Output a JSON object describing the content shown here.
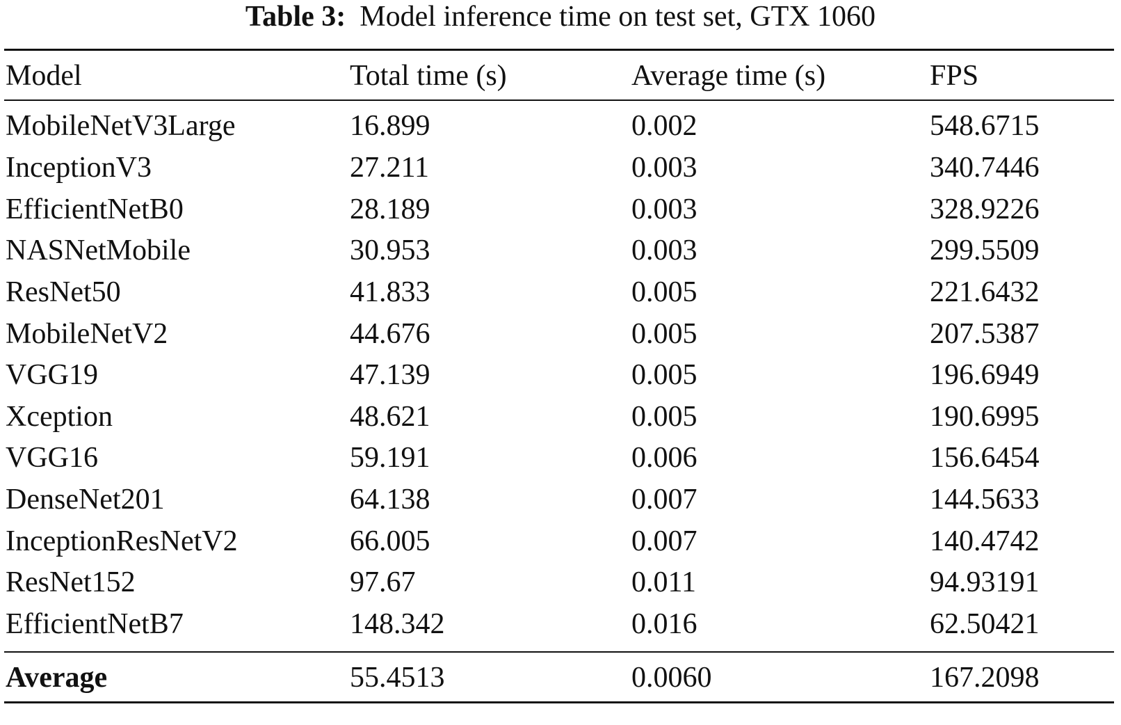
{
  "caption": {
    "label": "Table 3:",
    "text": "Model inference time on test set, GTX 1060"
  },
  "columns": [
    "Model",
    "Total time (s)",
    "Average time (s)",
    "FPS"
  ],
  "rows": [
    [
      "MobileNetV3Large",
      "16.899",
      "0.002",
      "548.6715"
    ],
    [
      "InceptionV3",
      "27.211",
      "0.003",
      "340.7446"
    ],
    [
      "EfficientNetB0",
      "28.189",
      "0.003",
      "328.9226"
    ],
    [
      "NASNetMobile",
      "30.953",
      "0.003",
      "299.5509"
    ],
    [
      "ResNet50",
      "41.833",
      "0.005",
      "221.6432"
    ],
    [
      "MobileNetV2",
      "44.676",
      "0.005",
      "207.5387"
    ],
    [
      "VGG19",
      "47.139",
      "0.005",
      "196.6949"
    ],
    [
      "Xception",
      "48.621",
      "0.005",
      "190.6995"
    ],
    [
      "VGG16",
      "59.191",
      "0.006",
      "156.6454"
    ],
    [
      "DenseNet201",
      "64.138",
      "0.007",
      "144.5633"
    ],
    [
      "InceptionResNetV2",
      "66.005",
      "0.007",
      "140.4742"
    ],
    [
      "ResNet152",
      "97.67",
      "0.011",
      "94.93191"
    ],
    [
      "EfficientNetB7",
      "148.342",
      "0.016",
      "62.50421"
    ]
  ],
  "summary": [
    "Average",
    "55.4513",
    "0.0060",
    "167.2098"
  ]
}
